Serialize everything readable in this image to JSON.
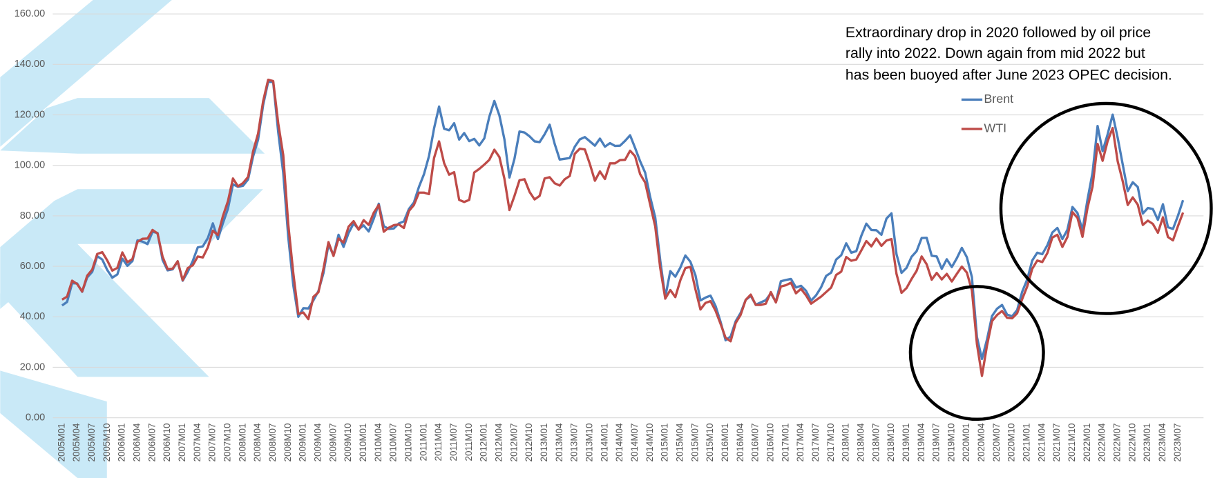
{
  "chart_data": {
    "type": "line",
    "annotation": [
      "Extraordinary drop in 2020 followed by oil price",
      "rally into 2022. Down again from mid 2022 but",
      "has been buoyed after June 2023 OPEC decision."
    ],
    "categories": [
      "2005M01",
      null,
      null,
      "2005M04",
      null,
      null,
      "2005M07",
      null,
      null,
      "2005M10",
      null,
      null,
      "2006M01",
      null,
      null,
      "2006M04",
      null,
      null,
      "2006M07",
      null,
      null,
      "2006M10",
      null,
      null,
      "2007M01",
      null,
      null,
      "2007M04",
      null,
      null,
      "2007M07",
      null,
      null,
      "2007M10",
      null,
      null,
      "2008M01",
      null,
      null,
      "2008M04",
      null,
      null,
      "2008M07",
      null,
      null,
      "2008M10",
      null,
      null,
      "2009M01",
      null,
      null,
      "2009M04",
      null,
      null,
      "2009M07",
      null,
      null,
      "2009M10",
      null,
      null,
      "2010M01",
      null,
      null,
      "2010M04",
      null,
      null,
      "2010M07",
      null,
      null,
      "2010M10",
      null,
      null,
      "2011M01",
      null,
      null,
      "2011M04",
      null,
      null,
      "2011M07",
      null,
      null,
      "2011M10",
      null,
      null,
      "2012M01",
      null,
      null,
      "2012M04",
      null,
      null,
      "2012M07",
      null,
      null,
      "2012M10",
      null,
      null,
      "2013M01",
      null,
      null,
      "2013M04",
      null,
      null,
      "2013M07",
      null,
      null,
      "2013M10",
      null,
      null,
      "2014M01",
      null,
      null,
      "2014M04",
      null,
      null,
      "2014M07",
      null,
      null,
      "2014M10",
      null,
      null,
      "2015M01",
      null,
      null,
      "2015M04",
      null,
      null,
      "2015M07",
      null,
      null,
      "2015M10",
      null,
      null,
      "2016M01",
      null,
      null,
      "2016M04",
      null,
      null,
      "2016M07",
      null,
      null,
      "2016M10",
      null,
      null,
      "2017M01",
      null,
      null,
      "2017M04",
      null,
      null,
      "2017M07",
      null,
      null,
      "2017M10",
      null,
      null,
      "2018M01",
      null,
      null,
      "2018M04",
      null,
      null,
      "2018M07",
      null,
      null,
      "2018M10",
      null,
      null,
      "2019M01",
      null,
      null,
      "2019M04",
      null,
      null,
      "2019M07",
      null,
      null,
      "2019M10",
      null,
      null,
      "2020M01",
      null,
      null,
      "2020M04",
      null,
      null,
      "2020M07",
      null,
      null,
      "2020M10",
      null,
      null,
      "2021M01",
      null,
      null,
      "2021M04",
      null,
      null,
      "2021M07",
      null,
      null,
      "2021M10",
      null,
      null,
      "2022M01",
      null,
      null,
      "2022M04",
      null,
      null,
      "2022M07",
      null,
      null,
      "2022M10",
      null,
      null,
      "2023M01",
      null,
      null,
      "2023M04",
      null,
      null,
      "2023M07",
      null
    ],
    "series": [
      {
        "name": "Brent",
        "color": "#4a7ebb",
        "values": [
          44.5,
          45.9,
          53.3,
          53.2,
          49.9,
          55.6,
          57.8,
          64.0,
          62.7,
          58.5,
          55.5,
          56.8,
          63.0,
          60.2,
          62.1,
          70.3,
          69.8,
          68.8,
          73.7,
          73.2,
          62.5,
          58.4,
          58.8,
          62.0,
          54.3,
          57.8,
          62.1,
          67.5,
          67.9,
          71.2,
          77.0,
          70.8,
          77.1,
          82.8,
          92.5,
          91.5,
          91.9,
          94.4,
          103.5,
          110.2,
          123.9,
          133.1,
          133.0,
          113.2,
          97.0,
          71.6,
          52.5,
          40.0,
          43.4,
          43.3,
          46.5,
          50.2,
          57.3,
          68.6,
          64.4,
          72.5,
          67.7,
          73.2,
          77.0,
          74.7,
          76.2,
          73.8,
          78.8,
          84.8,
          75.9,
          74.8,
          75.0,
          77.0,
          77.8,
          82.7,
          85.3,
          91.5,
          96.5,
          103.7,
          114.6,
          123.3,
          114.5,
          113.9,
          116.7,
          110.2,
          112.8,
          109.6,
          110.5,
          107.9,
          110.7,
          119.3,
          125.5,
          119.8,
          110.3,
          95.2,
          102.6,
          113.4,
          113.0,
          111.5,
          109.5,
          109.2,
          112.3,
          116.1,
          108.5,
          102.3,
          102.6,
          102.9,
          107.4,
          110.3,
          111.2,
          109.5,
          107.8,
          110.6,
          107.4,
          108.8,
          107.7,
          107.8,
          109.7,
          111.9,
          106.9,
          101.6,
          97.1,
          87.4,
          79.4,
          62.3,
          47.8,
          58.1,
          55.9,
          59.5,
          64.3,
          61.8,
          56.5,
          46.5,
          47.6,
          48.4,
          44.3,
          38.0,
          30.7,
          32.2,
          38.2,
          41.6,
          46.7,
          48.3,
          44.8,
          45.7,
          46.6,
          49.3,
          45.9,
          54.1,
          54.6,
          55.0,
          51.6,
          52.3,
          50.3,
          46.4,
          48.5,
          51.7,
          56.2,
          57.5,
          62.7,
          64.4,
          69.1,
          65.4,
          66.0,
          72.1,
          76.9,
          74.4,
          74.3,
          72.5,
          78.9,
          81.0,
          64.8,
          57.4,
          59.4,
          63.8,
          66.0,
          71.2,
          71.3,
          64.2,
          63.9,
          59.0,
          62.8,
          59.7,
          63.2,
          67.3,
          63.6,
          55.7,
          32.0,
          23.3,
          31.0,
          40.3,
          43.2,
          44.7,
          40.9,
          40.2,
          42.7,
          49.9,
          54.8,
          62.3,
          65.4,
          64.8,
          68.3,
          73.4,
          75.2,
          70.8,
          74.5,
          83.5,
          81.1,
          74.3,
          86.5,
          97.1,
          115.6,
          105.6,
          112.3,
          120.1,
          110.9,
          100.4,
          89.8,
          93.3,
          91.4,
          80.9,
          83.1,
          82.7,
          78.4,
          84.6,
          75.5,
          74.8,
          80.1,
          86.2
        ]
      },
      {
        "name": "WTI",
        "color": "#be4b48",
        "values": [
          46.8,
          48.0,
          54.3,
          53.0,
          50.0,
          56.3,
          58.7,
          64.9,
          65.6,
          62.3,
          58.3,
          59.4,
          65.5,
          61.6,
          62.9,
          69.7,
          70.9,
          71.0,
          74.4,
          73.0,
          63.8,
          58.9,
          59.1,
          62.0,
          54.5,
          59.3,
          60.4,
          63.9,
          63.5,
          67.5,
          74.1,
          72.4,
          79.9,
          85.8,
          94.8,
          91.7,
          93.0,
          95.4,
          105.5,
          112.6,
          125.4,
          133.9,
          133.4,
          116.7,
          104.1,
          76.6,
          57.3,
          41.1,
          41.7,
          39.1,
          47.9,
          49.7,
          59.0,
          69.6,
          64.1,
          71.0,
          69.4,
          75.7,
          77.9,
          74.5,
          78.3,
          76.4,
          81.2,
          84.3,
          73.7,
          75.3,
          76.3,
          76.6,
          75.2,
          81.9,
          84.3,
          89.2,
          89.2,
          88.6,
          102.9,
          109.5,
          100.9,
          96.3,
          97.3,
          86.3,
          85.5,
          86.3,
          97.2,
          98.6,
          100.3,
          102.2,
          106.2,
          103.3,
          94.7,
          82.3,
          87.9,
          94.1,
          94.5,
          89.5,
          86.5,
          87.9,
          94.8,
          95.3,
          92.9,
          92.0,
          94.5,
          95.8,
          104.6,
          106.6,
          106.3,
          100.5,
          93.9,
          97.6,
          94.6,
          100.8,
          100.8,
          102.1,
          102.2,
          105.8,
          103.6,
          96.5,
          93.2,
          84.4,
          75.8,
          59.3,
          47.2,
          50.6,
          47.8,
          54.5,
          59.3,
          59.8,
          50.9,
          42.9,
          45.5,
          46.2,
          42.4,
          37.2,
          31.7,
          30.3,
          37.5,
          40.8,
          46.7,
          48.8,
          44.7,
          44.7,
          45.2,
          49.8,
          45.7,
          52.0,
          52.5,
          53.5,
          49.3,
          51.1,
          48.5,
          45.2,
          46.6,
          48.0,
          49.8,
          51.6,
          56.6,
          57.9,
          63.7,
          62.2,
          62.7,
          66.3,
          70.0,
          67.9,
          71.0,
          68.1,
          70.2,
          70.8,
          57.0,
          49.5,
          51.4,
          55.0,
          58.2,
          63.9,
          60.8,
          54.7,
          57.4,
          54.8,
          57.0,
          54.0,
          57.0,
          59.9,
          57.5,
          50.5,
          29.2,
          16.6,
          28.6,
          38.3,
          40.7,
          42.3,
          39.6,
          39.4,
          41.4,
          47.0,
          52.0,
          59.0,
          62.3,
          61.7,
          65.2,
          71.4,
          72.5,
          67.7,
          71.6,
          81.5,
          79.2,
          71.7,
          83.2,
          91.6,
          108.5,
          101.8,
          109.6,
          114.8,
          101.6,
          93.7,
          84.3,
          87.3,
          84.4,
          76.4,
          78.1,
          76.8,
          73.3,
          79.4,
          71.6,
          70.3,
          76.0,
          81.3
        ]
      }
    ],
    "ylim": [
      0,
      160
    ],
    "yticks": [
      {
        "value": 0,
        "label": "0.00"
      },
      {
        "value": 20,
        "label": "20.00"
      },
      {
        "value": 40,
        "label": "40.00"
      },
      {
        "value": 60,
        "label": "60.00"
      },
      {
        "value": 80,
        "label": "80.00"
      },
      {
        "value": 100,
        "label": "100.00"
      },
      {
        "value": 120,
        "label": "120.00"
      },
      {
        "value": 140,
        "label": "140.00"
      },
      {
        "value": 160,
        "label": "160.00"
      }
    ],
    "grid": true
  }
}
